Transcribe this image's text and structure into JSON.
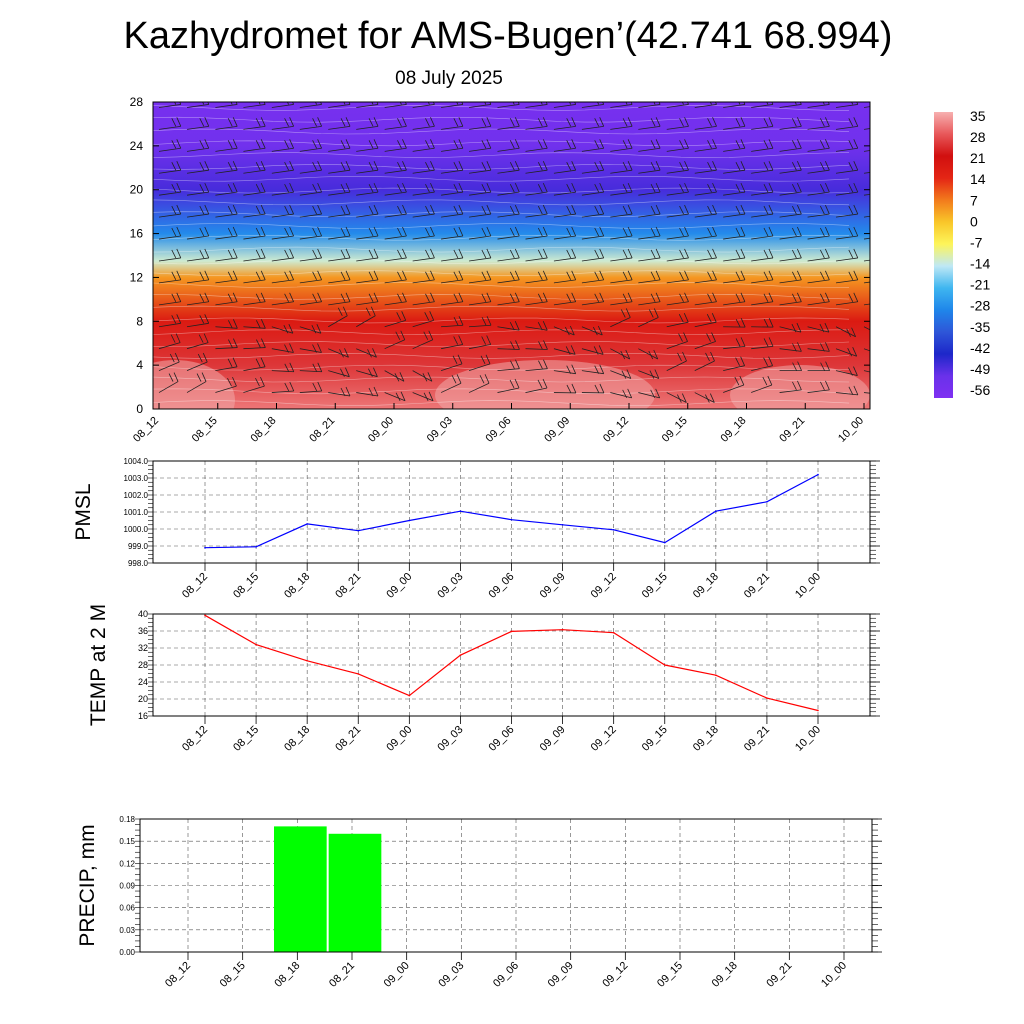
{
  "header": {
    "title": "Kazhydromet for AMS-Bugen’(42.741 68.994)",
    "subtitle": "08 July 2025"
  },
  "colors": {
    "pmsl_line": "#0000ff",
    "temp_line": "#ff0000",
    "precip_bar": "#00ff00",
    "colormap": [
      "#f7b0b0",
      "#e8585a",
      "#d10f0f",
      "#e42515",
      "#f27a1c",
      "#f9c629",
      "#fdf55a",
      "#bfe8f5",
      "#3fb6f0",
      "#1f86ea",
      "#2e56d8",
      "#1d27c9",
      "#6a31ea",
      "#7f30f2"
    ]
  },
  "time_labels": [
    "08_12",
    "08_15",
    "08_18",
    "08_21",
    "09_00",
    "09_03",
    "09_06",
    "09_09",
    "09_12",
    "09_15",
    "09_18",
    "09_21",
    "10_00"
  ],
  "chart_data": [
    {
      "type": "heatmap",
      "title": "",
      "x": [
        "08_12",
        "08_15",
        "08_18",
        "08_21",
        "09_00",
        "09_03",
        "09_06",
        "09_09",
        "09_12",
        "09_15",
        "09_18",
        "09_21",
        "10_00"
      ],
      "y_ticks": [
        0,
        4,
        8,
        12,
        16,
        20,
        24,
        28
      ],
      "ylim": [
        0,
        28
      ],
      "colorbar_ticks": [
        35,
        28,
        21,
        14,
        7,
        0,
        -7,
        -14,
        -21,
        -28,
        -35,
        -42,
        -49,
        -56
      ],
      "value_bands": [
        {
          "y": 0,
          "value": 30
        },
        {
          "y": 4,
          "value": 24
        },
        {
          "y": 8,
          "value": 16
        },
        {
          "y": 12,
          "value": 2
        },
        {
          "y": 13.5,
          "value": -16
        },
        {
          "y": 16,
          "value": -32
        },
        {
          "y": 20,
          "value": -52
        },
        {
          "y": 24,
          "value": -58
        },
        {
          "y": 28,
          "value": -60
        }
      ],
      "wind_barbs": true
    },
    {
      "type": "line",
      "ylabel": "PMSL",
      "x": [
        "08_12",
        "08_15",
        "08_18",
        "08_21",
        "09_00",
        "09_03",
        "09_06",
        "09_09",
        "09_12",
        "09_15",
        "09_18",
        "09_21",
        "10_00"
      ],
      "values": [
        998.9,
        998.95,
        1000.3,
        999.9,
        1000.5,
        1001.05,
        1000.55,
        1000.25,
        999.95,
        999.2,
        1001.05,
        1001.6,
        1003.2
      ],
      "ylim": [
        998.0,
        1004.0
      ],
      "y_ticks": [
        "998.0",
        "999.0",
        "1000.0",
        "1001.0",
        "1002.0",
        "1003.0",
        "1004.0"
      ],
      "grid": true
    },
    {
      "type": "line",
      "ylabel": "TEMP at 2 M",
      "x": [
        "08_12",
        "08_15",
        "08_18",
        "08_21",
        "09_00",
        "09_03",
        "09_06",
        "09_09",
        "09_12",
        "09_15",
        "09_18",
        "09_21",
        "10_00"
      ],
      "values": [
        39.7,
        32.8,
        29.0,
        25.9,
        20.8,
        30.3,
        35.9,
        36.3,
        35.6,
        28.0,
        25.6,
        20.2,
        17.3
      ],
      "ylim": [
        16,
        40
      ],
      "y_ticks": [
        "16",
        "20",
        "24",
        "28",
        "32",
        "36",
        "40"
      ],
      "grid": true
    },
    {
      "type": "bar",
      "ylabel": "PRECIP, mm",
      "categories": [
        "08_12",
        "08_15",
        "08_18",
        "08_21",
        "09_00",
        "09_03",
        "09_06",
        "09_09",
        "09_12",
        "09_15",
        "09_18",
        "09_21",
        "10_00"
      ],
      "values": [
        0,
        0,
        0.17,
        0.16,
        0,
        0,
        0,
        0,
        0,
        0,
        0,
        0,
        0
      ],
      "ylim": [
        0,
        0.18
      ],
      "y_ticks": [
        "0.00",
        "0.03",
        "0.06",
        "0.09",
        "0.12",
        "0.15",
        "0.18"
      ],
      "grid": true
    }
  ]
}
